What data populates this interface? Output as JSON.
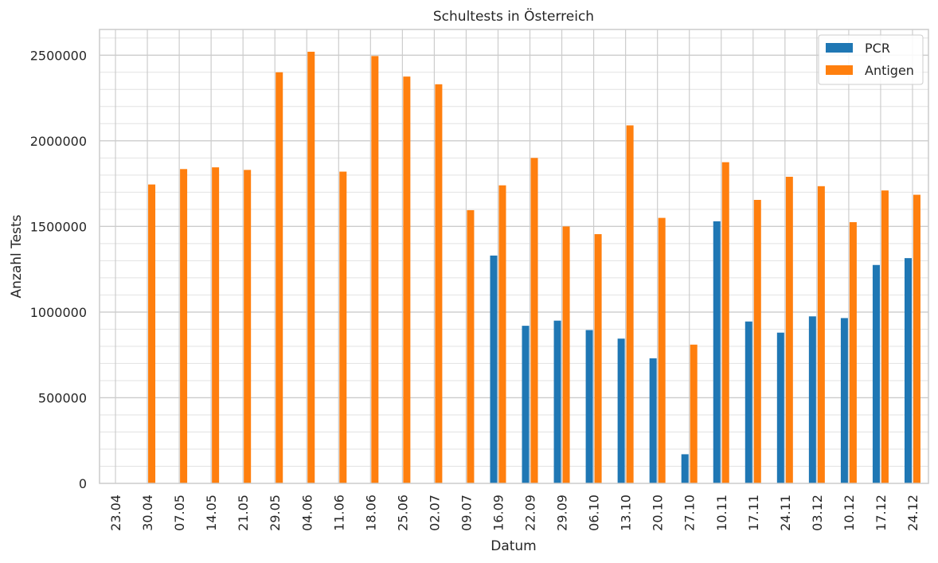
{
  "chart_data": {
    "type": "bar",
    "title": "Schultests in Österreich",
    "xlabel": "Datum",
    "ylabel": "Anzahl Tests",
    "ylim": [
      0,
      2650000
    ],
    "yticks": [
      0,
      500000,
      1000000,
      1500000,
      2000000,
      2500000
    ],
    "grid": true,
    "legend_position": "top-right",
    "categories": [
      "23.04",
      "30.04",
      "07.05",
      "14.05",
      "21.05",
      "29.05",
      "04.06",
      "11.06",
      "18.06",
      "25.06",
      "02.07",
      "09.07",
      "16.09",
      "22.09",
      "29.09",
      "06.10",
      "13.10",
      "20.10",
      "27.10",
      "10.11",
      "17.11",
      "24.11",
      "03.12",
      "10.12",
      "17.12",
      "24.12"
    ],
    "series": [
      {
        "name": "PCR",
        "color": "#1f77b4",
        "values": [
          0,
          0,
          0,
          0,
          0,
          0,
          0,
          0,
          0,
          0,
          0,
          0,
          1330000,
          920000,
          950000,
          895000,
          845000,
          730000,
          170000,
          1530000,
          945000,
          880000,
          975000,
          965000,
          1275000,
          1315000
        ]
      },
      {
        "name": "Antigen",
        "color": "#ff7f0e",
        "values": [
          0,
          1745000,
          1835000,
          1845000,
          1830000,
          2400000,
          2520000,
          1820000,
          2495000,
          2375000,
          2330000,
          1595000,
          1740000,
          1900000,
          1500000,
          1455000,
          2090000,
          1550000,
          810000,
          1875000,
          1655000,
          1790000,
          1735000,
          1525000,
          1710000,
          1685000
        ]
      }
    ]
  }
}
